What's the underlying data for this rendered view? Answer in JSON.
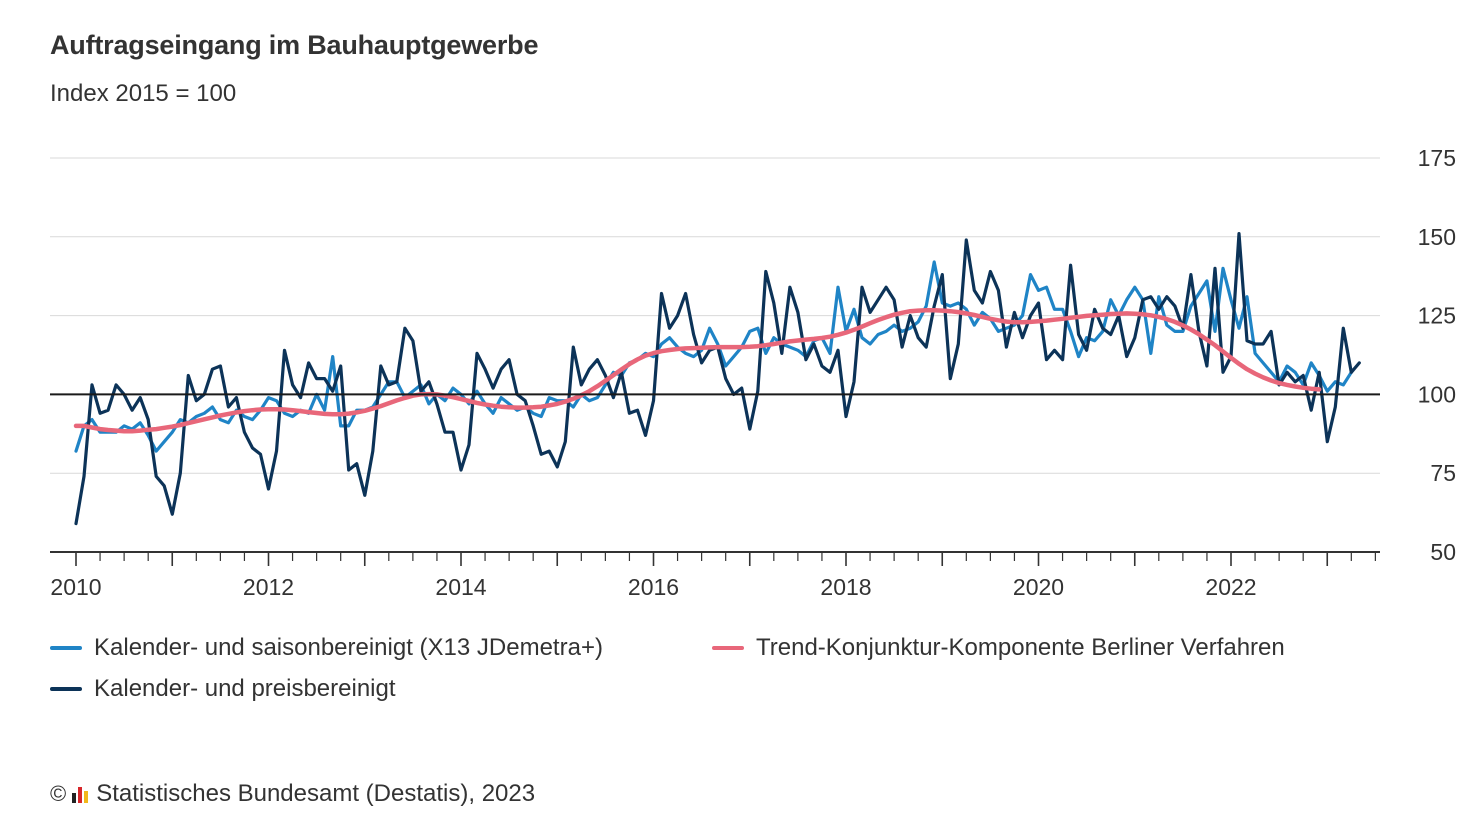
{
  "title": "Auftragseingang im Bauhauptgewerbe",
  "subtitle": "Index 2015 = 100",
  "source": "Statistisches Bundesamt (Destatis), 2023",
  "copyright_symbol": "©",
  "colors": {
    "light_blue": "#1f84c6",
    "dark_blue": "#0c3358",
    "trend_red": "#e8677a",
    "grid": "#d9d9d9",
    "axis": "#333333",
    "logo": [
      "#222222",
      "#d7262a",
      "#f2b71b"
    ]
  },
  "chart_data": {
    "type": "line",
    "title": "Auftragseingang im Bauhauptgewerbe",
    "subtitle": "Index 2015 = 100",
    "xlabel": "",
    "ylabel": "",
    "ylim": [
      50,
      175
    ],
    "y_ticks": [
      50,
      75,
      100,
      125,
      150,
      175
    ],
    "x_start": 2010.0,
    "x_step_months": 1,
    "x_ticks": [
      2010,
      2012,
      2014,
      2016,
      2018,
      2020,
      2022
    ],
    "reference_line": 100,
    "grid": true,
    "legend": [
      {
        "name": "Kalender- und saisonbereinigt (X13 JDemetra+)",
        "color": "#1f84c6"
      },
      {
        "name": "Trend-Konjunktur-Komponente Berliner Verfahren",
        "color": "#e8677a"
      },
      {
        "name": "Kalender- und preisbereinigt",
        "color": "#0c3358"
      }
    ],
    "series": [
      {
        "name": "Kalender- und saisonbereinigt (X13 JDemetra+)",
        "color": "#1f84c6",
        "width": 3.2,
        "values": [
          82,
          90,
          92,
          88,
          88,
          88,
          90,
          89,
          91,
          87,
          82,
          85,
          88,
          92,
          91,
          93,
          94,
          96,
          92,
          91,
          95,
          93,
          92,
          95,
          99,
          98,
          94,
          93,
          95,
          94,
          100,
          95,
          112,
          90,
          90,
          95,
          95,
          96,
          100,
          104,
          104,
          99,
          101,
          103,
          97,
          100,
          98,
          102,
          100,
          97,
          101,
          97,
          94,
          99,
          97,
          95,
          96,
          94,
          93,
          99,
          98,
          98,
          96,
          100,
          98,
          99,
          103,
          107,
          106,
          110,
          111,
          113,
          112,
          116,
          118,
          115,
          113,
          112,
          114,
          121,
          116,
          109,
          112,
          115,
          120,
          121,
          113,
          118,
          116,
          115,
          114,
          112,
          117,
          118,
          113,
          134,
          120,
          127,
          118,
          116,
          119,
          120,
          122,
          120,
          121,
          123,
          128,
          142,
          129,
          128,
          129,
          127,
          122,
          126,
          124,
          120,
          121,
          122,
          125,
          138,
          133,
          134,
          127,
          127,
          120,
          112,
          118,
          117,
          120,
          130,
          125,
          130,
          134,
          130,
          113,
          131,
          122,
          120,
          120,
          128,
          132,
          136,
          120,
          140,
          130,
          121,
          131,
          113,
          110,
          107,
          104,
          109,
          107,
          103,
          110,
          106,
          101,
          104,
          103,
          107
        ]
      },
      {
        "name": "Kalender- und preisbereinigt",
        "color": "#0c3358",
        "width": 3.2,
        "values": [
          59,
          74,
          103,
          94,
          95,
          103,
          100,
          95,
          99,
          92,
          74,
          71,
          62,
          75,
          106,
          98,
          100,
          108,
          109,
          96,
          99,
          88,
          83,
          81,
          70,
          82,
          114,
          103,
          99,
          110,
          105,
          105,
          101,
          109,
          76,
          78,
          68,
          82,
          109,
          103,
          104,
          121,
          117,
          101,
          104,
          97,
          88,
          88,
          76,
          84,
          113,
          108,
          102,
          108,
          111,
          100,
          98,
          90,
          81,
          82,
          77,
          85,
          115,
          103,
          108,
          111,
          106,
          99,
          107,
          94,
          95,
          87,
          98,
          132,
          121,
          125,
          132,
          119,
          110,
          114,
          115,
          105,
          100,
          102,
          89,
          101,
          139,
          129,
          113,
          134,
          126,
          111,
          116,
          109,
          107,
          114,
          93,
          104,
          134,
          126,
          130,
          134,
          130,
          115,
          125,
          118,
          115,
          128,
          138,
          105,
          116,
          149,
          133,
          129,
          139,
          133,
          115,
          126,
          118,
          125,
          129,
          111,
          114,
          111,
          141,
          119,
          114,
          127,
          121,
          119,
          125,
          112,
          118,
          130,
          131,
          127,
          131,
          128,
          121,
          138,
          120,
          109,
          140,
          107,
          112,
          151,
          117,
          116,
          116,
          120,
          103,
          107,
          104,
          106,
          95,
          107,
          85,
          96,
          121,
          107,
          110
        ]
      },
      {
        "name": "Trend-Konjunktur-Komponente Berliner Verfahren",
        "color": "#e8677a",
        "width": 4.5,
        "values": [
          90,
          90,
          89.5,
          89,
          88.7,
          88.5,
          88.3,
          88.3,
          88.5,
          88.8,
          89,
          89.4,
          89.8,
          90.3,
          90.9,
          91.5,
          92.1,
          92.7,
          93.3,
          93.8,
          94.3,
          94.7,
          95,
          95.2,
          95.3,
          95.3,
          95.2,
          95,
          94.7,
          94.4,
          94.1,
          93.8,
          93.7,
          93.7,
          93.9,
          94.3,
          94.8,
          95.5,
          96.3,
          97.2,
          98.1,
          98.9,
          99.6,
          100,
          100.1,
          100,
          99.6,
          99.1,
          98.5,
          97.9,
          97.3,
          96.8,
          96.4,
          96.1,
          95.9,
          95.8,
          95.8,
          95.9,
          96.1,
          96.5,
          97,
          97.7,
          98.6,
          99.7,
          101,
          102.6,
          104.3,
          106.1,
          107.9,
          109.6,
          111.1,
          112.3,
          113.1,
          113.7,
          114.1,
          114.4,
          114.6,
          114.7,
          114.8,
          114.9,
          115,
          115,
          115,
          115,
          115.1,
          115.3,
          115.6,
          116,
          116.4,
          116.8,
          117.1,
          117.4,
          117.6,
          117.9,
          118.3,
          118.9,
          119.6,
          120.5,
          121.5,
          122.6,
          123.6,
          124.5,
          125.3,
          125.9,
          126.4,
          126.6,
          126.7,
          126.7,
          126.6,
          126.4,
          126.1,
          125.7,
          125.2,
          124.6,
          124,
          123.5,
          123.1,
          122.9,
          122.9,
          123,
          123.2,
          123.4,
          123.7,
          124,
          124.3,
          124.6,
          124.9,
          125.1,
          125.3,
          125.5,
          125.6,
          125.7,
          125.6,
          125.4,
          125.1,
          124.6,
          123.9,
          123,
          121.9,
          120.6,
          119.1,
          117.4,
          115.6,
          113.6,
          111.6,
          109.7,
          108,
          106.6,
          105.4,
          104.4,
          103.6,
          103,
          102.5,
          102.1,
          101.8,
          101.6
        ]
      }
    ],
    "x_range": [
      2009.85,
      2023.7
    ]
  }
}
